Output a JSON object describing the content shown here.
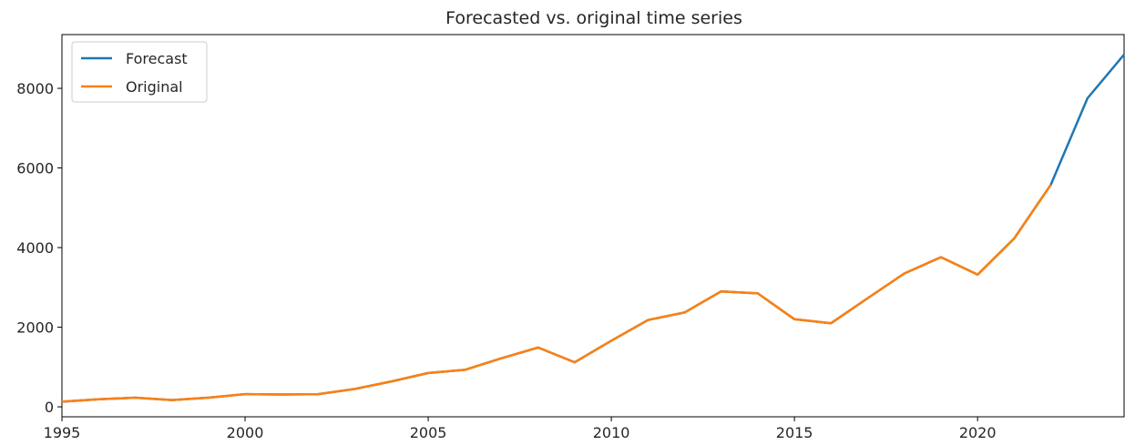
{
  "chart_data": {
    "type": "line",
    "title": "Forecasted vs. original time series",
    "xlabel": "",
    "ylabel": "",
    "xlim": [
      1995,
      2024
    ],
    "ylim": [
      -250,
      9350
    ],
    "xticks": [
      1995,
      2000,
      2005,
      2010,
      2015,
      2020
    ],
    "yticks": [
      0,
      2000,
      4000,
      6000,
      8000
    ],
    "grid": false,
    "legend_position": "top-left",
    "series": [
      {
        "name": "Forecast",
        "color": "#1f77b4",
        "x": [
          1995,
          1996,
          1997,
          1998,
          1999,
          2000,
          2001,
          2002,
          2003,
          2004,
          2005,
          2006,
          2007,
          2008,
          2009,
          2010,
          2011,
          2012,
          2013,
          2014,
          2015,
          2016,
          2017,
          2018,
          2019,
          2020,
          2021,
          2022,
          2023,
          2024
        ],
        "values": [
          130,
          190,
          230,
          170,
          230,
          320,
          310,
          320,
          450,
          640,
          850,
          930,
          1220,
          1490,
          1120,
          1660,
          2180,
          2370,
          2900,
          2850,
          2200,
          2100,
          2730,
          3350,
          3760,
          3320,
          4230,
          5580,
          7750,
          8850
        ]
      },
      {
        "name": "Original",
        "color": "#ff7f0e",
        "x": [
          1995,
          1996,
          1997,
          1998,
          1999,
          2000,
          2001,
          2002,
          2003,
          2004,
          2005,
          2006,
          2007,
          2008,
          2009,
          2010,
          2011,
          2012,
          2013,
          2014,
          2015,
          2016,
          2017,
          2018,
          2019,
          2020,
          2021,
          2022
        ],
        "values": [
          130,
          190,
          230,
          170,
          230,
          320,
          310,
          320,
          450,
          640,
          850,
          930,
          1220,
          1490,
          1120,
          1660,
          2180,
          2370,
          2900,
          2850,
          2200,
          2100,
          2730,
          3350,
          3760,
          3320,
          4230,
          5580
        ]
      }
    ]
  }
}
